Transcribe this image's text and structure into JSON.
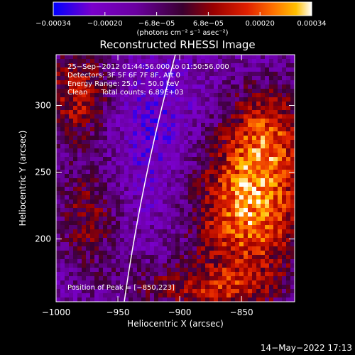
{
  "chart_data": {
    "type": "heatmap",
    "title": "Reconstructed RHESSI Image",
    "xlabel": "Heliocentric X (arcsec)",
    "ylabel": "Heliocentric Y (arcsec)",
    "xlim": [
      -1000,
      -807
    ],
    "ylim": [
      153,
      338
    ],
    "x_ticks": [
      -1000,
      -950,
      -900,
      -850
    ],
    "x_tick_labels": [
      "−1000",
      "−950",
      "−900",
      "−850"
    ],
    "y_ticks": [
      200,
      250,
      300
    ],
    "y_tick_labels": [
      "200",
      "250",
      "300"
    ],
    "colorbar": {
      "min": -0.00034,
      "max": 0.00034,
      "tick_labels": [
        "−0.00034",
        "−0.00020",
        "−6.8e−05",
        "6.8e−05",
        "0.00020",
        "0.00034"
      ],
      "units_label": "(photons cm⁻² s⁻¹ asec⁻²)",
      "colors": [
        "#0000ff",
        "#7a00cc",
        "#6a00a0",
        "#3a0030",
        "#9a0000",
        "#e02000",
        "#ff7000",
        "#ffc000",
        "#ffffff"
      ]
    },
    "annotations": [
      "25−Sep−2012 01:44:56.000 to 01:50:56.000",
      "Detectors: 3F 5F 6F 7F 8F, Att 0",
      "Energy Range: 25.0 − 50.0 keV",
      "Clean      Total counts: 6.89E+03"
    ],
    "peak_label": "Position of Peak = [−850,223]",
    "peak": [
      -850,
      223
    ],
    "limb": true,
    "grid": false
  },
  "footer": {
    "date": "14−May−2022 17:13"
  }
}
